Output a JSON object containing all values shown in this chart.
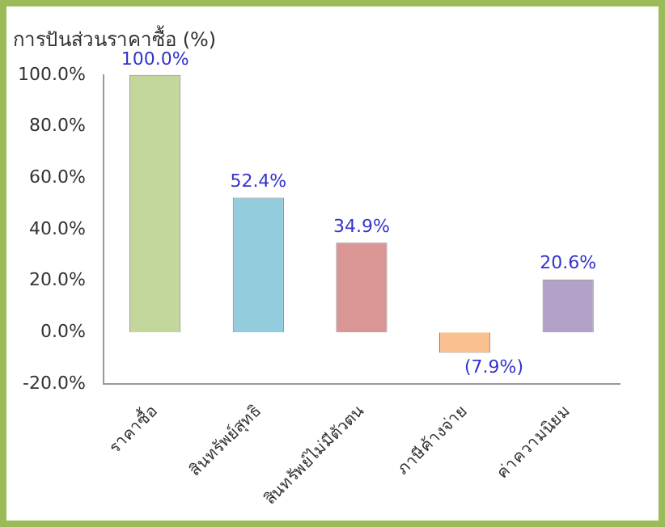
{
  "chart_data": {
    "type": "bar",
    "title": "การปันส่วนราคาซื้อ (%)",
    "categories": [
      "ราคาซื้อ",
      "สินทรัพย์สุทธิ",
      "สินทรัพย์ไม่มีตัวตน",
      "ภาษีค้างจ่าย",
      "ค่าความนิยม"
    ],
    "values": [
      100,
      52.4,
      34.9,
      -7.9,
      20.6
    ],
    "colors": [
      "#c3d69b",
      "#93cddd",
      "#d99694",
      "#fac090",
      "#b3a2c7"
    ],
    "value_labels": [
      "100.0%",
      "52.4%",
      "34.9%",
      "(7.9%)",
      "20.6%"
    ],
    "ylim": [
      -20,
      100
    ],
    "yticks": [
      {
        "value": -20,
        "label": "-20.0%"
      },
      {
        "value": 0,
        "label": "0.0%"
      },
      {
        "value": 20,
        "label": "20.0%"
      },
      {
        "value": 40,
        "label": "40.0%"
      },
      {
        "value": 60,
        "label": "60.0%"
      },
      {
        "value": 80,
        "label": "80.0%"
      },
      {
        "value": 100,
        "label": "100.0%"
      }
    ],
    "grid": false,
    "legend": false
  }
}
